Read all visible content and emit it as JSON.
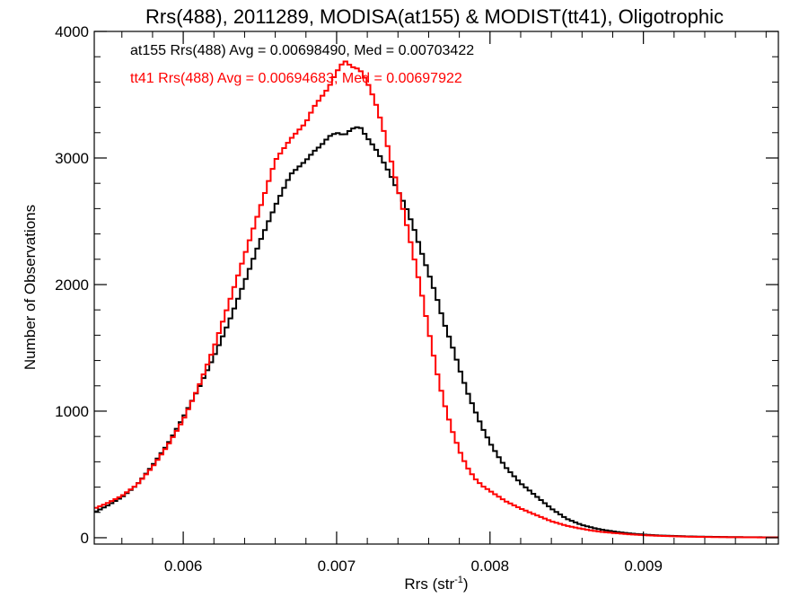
{
  "chart_data": {
    "type": "line",
    "title": "Rrs(488), 2011289, MODISA(at155) & MODIST(tt41), Oligotrophic",
    "xlabel": "Rrs (str",
    "xlabel_sup": "-1",
    "xlabel_close": ")",
    "ylabel": "Number of Observations",
    "xlim": [
      0.00542,
      0.00988
    ],
    "ylim": [
      -50,
      4000
    ],
    "x_ticks": [
      {
        "value": 0.006,
        "label": "0.006"
      },
      {
        "value": 0.007,
        "label": "0.007"
      },
      {
        "value": 0.008,
        "label": "0.008"
      },
      {
        "value": 0.009,
        "label": "0.009"
      }
    ],
    "y_ticks": [
      {
        "value": 0,
        "label": "0"
      },
      {
        "value": 1000,
        "label": "1000"
      },
      {
        "value": 2000,
        "label": "2000"
      },
      {
        "value": 3000,
        "label": "3000"
      },
      {
        "value": 4000,
        "label": "4000"
      }
    ],
    "grid": false,
    "step": "histogram",
    "annotations": [
      {
        "text": "at155 Rrs(488) Avg = 0.00698490, Med = 0.00703422",
        "color": "#000000"
      },
      {
        "text": "tt41 Rrs(488) Avg = 0.00694683, Med = 0.00697922",
        "color": "#ff0000"
      }
    ],
    "series": [
      {
        "color": "#000000",
        "x": [
          0.00542,
          0.0055,
          0.0056,
          0.0057,
          0.0058,
          0.0059,
          0.006,
          0.0061,
          0.0062,
          0.0063,
          0.0064,
          0.0065,
          0.0066,
          0.0067,
          0.0068,
          0.00685,
          0.0069,
          0.00695,
          0.007,
          0.00705,
          0.0071,
          0.00715,
          0.0072,
          0.00725,
          0.0073,
          0.00735,
          0.0074,
          0.00745,
          0.0075,
          0.00755,
          0.0076,
          0.00765,
          0.0077,
          0.00775,
          0.0078,
          0.00785,
          0.0079,
          0.00795,
          0.008,
          0.00805,
          0.0081,
          0.0082,
          0.0083,
          0.0084,
          0.0085,
          0.0086,
          0.0087,
          0.0088,
          0.0089,
          0.009,
          0.0091,
          0.0092,
          0.0093,
          0.0094,
          0.0095,
          0.0096,
          0.0097,
          0.00988
        ],
        "y": [
          200,
          250,
          320,
          420,
          570,
          740,
          950,
          1180,
          1430,
          1710,
          2020,
          2340,
          2620,
          2870,
          2980,
          3050,
          3100,
          3170,
          3200,
          3180,
          3230,
          3250,
          3160,
          3080,
          2980,
          2870,
          2740,
          2620,
          2460,
          2270,
          2090,
          1910,
          1700,
          1530,
          1340,
          1160,
          1010,
          870,
          750,
          650,
          560,
          430,
          330,
          230,
          150,
          100,
          70,
          50,
          35,
          25,
          18,
          14,
          10,
          8,
          6,
          5,
          4,
          3
        ]
      },
      {
        "color": "#ff0000",
        "x": [
          0.00542,
          0.0055,
          0.0056,
          0.0057,
          0.0058,
          0.0059,
          0.006,
          0.0061,
          0.0062,
          0.0063,
          0.0064,
          0.0065,
          0.0066,
          0.0067,
          0.0068,
          0.00685,
          0.0069,
          0.00695,
          0.007,
          0.00705,
          0.0071,
          0.00715,
          0.0072,
          0.00725,
          0.0073,
          0.00735,
          0.0074,
          0.00745,
          0.0075,
          0.00755,
          0.0076,
          0.00765,
          0.0077,
          0.00775,
          0.0078,
          0.00785,
          0.0079,
          0.00795,
          0.008,
          0.00805,
          0.0081,
          0.0082,
          0.0083,
          0.0084,
          0.0085,
          0.0086,
          0.0087,
          0.0088,
          0.0089,
          0.009,
          0.0091,
          0.0092,
          0.0093,
          0.0094,
          0.0095,
          0.0096,
          0.0097,
          0.00988
        ],
        "y": [
          230,
          270,
          330,
          420,
          560,
          730,
          930,
          1190,
          1500,
          1860,
          2230,
          2600,
          2980,
          3150,
          3280,
          3400,
          3480,
          3560,
          3680,
          3770,
          3720,
          3700,
          3600,
          3450,
          3250,
          3010,
          2760,
          2510,
          2240,
          1960,
          1640,
          1330,
          1070,
          860,
          690,
          560,
          470,
          410,
          370,
          330,
          290,
          230,
          180,
          130,
          95,
          70,
          50,
          38,
          28,
          20,
          15,
          11,
          8,
          6,
          5,
          4,
          3,
          2
        ]
      }
    ]
  }
}
